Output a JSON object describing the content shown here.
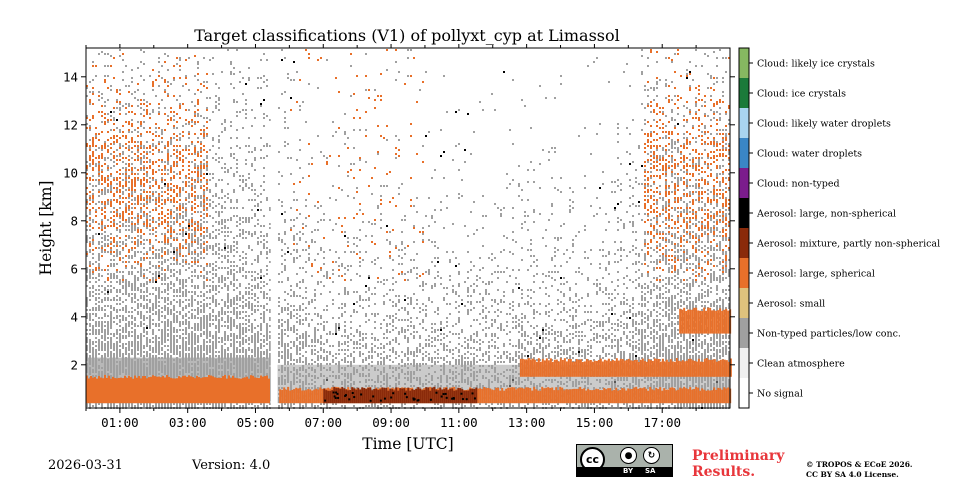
{
  "chart_data": {
    "type": "heatmap",
    "title": "Target classifications (V1) of pollyxt_cyp at Limassol",
    "xlabel": "Time [UTC]",
    "ylabel": "Height [km]",
    "xlim_hours": [
      0,
      19
    ],
    "ylim_km": [
      0.2,
      15.2
    ],
    "x_ticks": [
      {
        "value": 1,
        "label": "01:00"
      },
      {
        "value": 3,
        "label": "03:00"
      },
      {
        "value": 5,
        "label": "05:00"
      },
      {
        "value": 7,
        "label": "07:00"
      },
      {
        "value": 9,
        "label": "09:00"
      },
      {
        "value": 11,
        "label": "11:00"
      },
      {
        "value": 13,
        "label": "13:00"
      },
      {
        "value": 15,
        "label": "15:00"
      },
      {
        "value": 17,
        "label": "17:00"
      }
    ],
    "y_ticks": [
      {
        "value": 2,
        "label": "2"
      },
      {
        "value": 4,
        "label": "4"
      },
      {
        "value": 6,
        "label": "6"
      },
      {
        "value": 8,
        "label": "8"
      },
      {
        "value": 10,
        "label": "10"
      },
      {
        "value": 12,
        "label": "12"
      },
      {
        "value": 14,
        "label": "14"
      }
    ],
    "classes": [
      {
        "code": 0,
        "label": "No signal",
        "color": "#ffffff"
      },
      {
        "code": 1,
        "label": "Clean atmosphere",
        "color": "#f0f0f0"
      },
      {
        "code": 2,
        "label": "Non-typed particles/low conc.",
        "color": "#a0a0a0"
      },
      {
        "code": 3,
        "label": "Aerosol: small",
        "color": "#dfc27d"
      },
      {
        "code": 4,
        "label": "Aerosol: large, spherical",
        "color": "#e8702a"
      },
      {
        "code": 5,
        "label": "Aerosol: mixture, partly non-spherical",
        "color": "#8a2a0a"
      },
      {
        "code": 6,
        "label": "Aerosol: large, non-spherical",
        "color": "#000000"
      },
      {
        "code": 7,
        "label": "Cloud: non-typed",
        "color": "#7b1c8c"
      },
      {
        "code": 8,
        "label": "Cloud: water droplets",
        "color": "#3a86c6"
      },
      {
        "code": 9,
        "label": "Cloud: likely water droplets",
        "color": "#a9d4f0"
      },
      {
        "code": 10,
        "label": "Cloud: ice crystals",
        "color": "#1b7a3a"
      },
      {
        "code": 11,
        "label": "Cloud: likely ice crystals",
        "color": "#86b861"
      }
    ],
    "gaps_hours": [
      [
        5.45,
        5.65
      ]
    ],
    "layers": [
      {
        "class": "Aerosol: large, spherical",
        "time_hours": [
          0,
          5.4
        ],
        "height_km": [
          0.4,
          1.5
        ],
        "note": "morning aerosol layer"
      },
      {
        "class": "Aerosol: large, spherical",
        "time_hours": [
          5.7,
          19
        ],
        "height_km": [
          0.4,
          1.0
        ],
        "note": "daytime boundary layer"
      },
      {
        "class": "Aerosol: mixture, partly non-spherical",
        "time_hours": [
          7.0,
          11.5
        ],
        "height_km": [
          0.4,
          1.0
        ]
      },
      {
        "class": "Aerosol: large, spherical",
        "time_hours": [
          12.8,
          19
        ],
        "height_km": [
          1.5,
          2.2
        ],
        "note": "elevated layer"
      },
      {
        "class": "Aerosol: large, spherical",
        "time_hours": [
          17.5,
          19
        ],
        "height_km": [
          3.3,
          4.3
        ]
      },
      {
        "class": "Non-typed particles/low conc.",
        "time_hours": [
          0,
          19
        ],
        "height_km": [
          0.4,
          15.0
        ],
        "note": "scattered noise, denser at night"
      },
      {
        "class": "Aerosol: large, spherical",
        "time_hours": [
          0,
          3.6
        ],
        "height_km": [
          6,
          15
        ],
        "note": "sparse night-time speckle"
      },
      {
        "class": "Aerosol: large, spherical",
        "time_hours": [
          16.5,
          19
        ],
        "height_km": [
          6,
          15
        ],
        "note": "sparse evening speckle"
      }
    ]
  },
  "footer": {
    "date": "2026-03-31",
    "version": "Version: 4.0",
    "preliminary_line1": "Preliminary",
    "preliminary_line2": "Results.",
    "copyright_line1": "© TROPOS & ECoE 2026.",
    "copyright_line2": "CC BY SA 4.0 License."
  },
  "license_badge": {
    "cc": "cc",
    "by": "BY",
    "sa": "SA"
  }
}
